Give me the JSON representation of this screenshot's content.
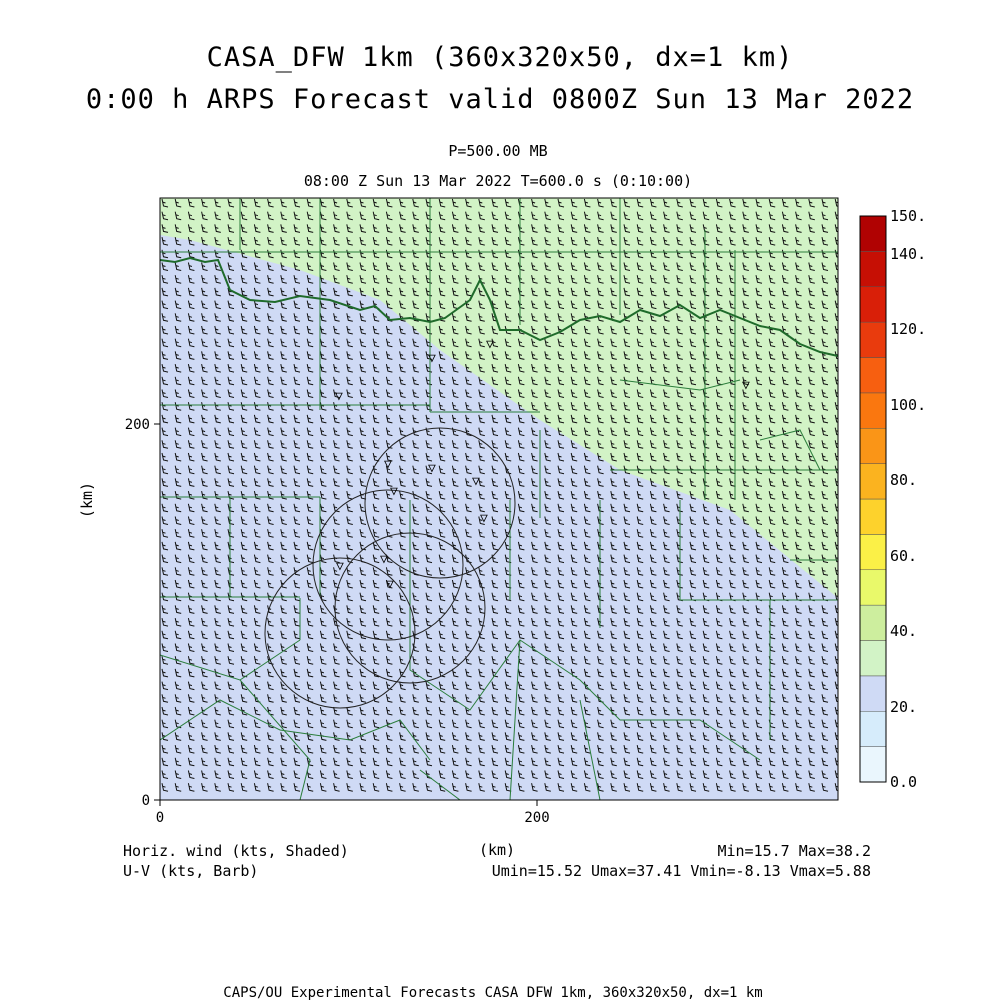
{
  "header": {
    "title_line1": "CASA_DFW 1km (360x320x50, dx=1 km)",
    "title_line2": "0:00 h ARPS Forecast valid 0800Z Sun 13 Mar 2022",
    "level": "P=500.00 MB",
    "time": "08:00 Z Sun 13 Mar 2022    T=600.0 s (0:10:00)"
  },
  "axes": {
    "x_ticks": [
      "0",
      "200"
    ],
    "y_ticks": [
      "0",
      "200"
    ],
    "x_label": "(km)",
    "y_label": "(km)",
    "x_range_km": [
      0,
      360
    ],
    "y_range_km": [
      0,
      320
    ]
  },
  "colorbar": {
    "labels": [
      "0.0",
      "20.",
      "40.",
      "60.",
      "80.",
      "100.",
      "120.",
      "140.",
      "150."
    ],
    "colors": [
      "#eaf6fd",
      "#d6ecfb",
      "#cfdaf5",
      "#d2f3c6",
      "#cdee9e",
      "#e9f96a",
      "#fbf047",
      "#fdd22c",
      "#fbb31f",
      "#fa9517",
      "#fa770f",
      "#f75f10",
      "#e93b0d",
      "#d91f08",
      "#c60f04",
      "#b00202"
    ]
  },
  "map": {
    "field_colors": {
      "low": "#cfdaf5",
      "high": "#d2f3c6"
    },
    "marker_glyph": "▽",
    "radar_circle_count": 4
  },
  "stats": {
    "left_line1": "Horiz. wind (kts, Shaded)",
    "left_line2": "U-V (kts, Barb)",
    "right_line1": "Min=15.7 Max=38.2",
    "right_line2": "Umin=15.52 Umax=37.41 Vmin=-8.13 Vmax=5.88"
  },
  "footer": "CAPS/OU Experimental Forecasts  CASA DFW 1km, 360x320x50, dx=1 km"
}
